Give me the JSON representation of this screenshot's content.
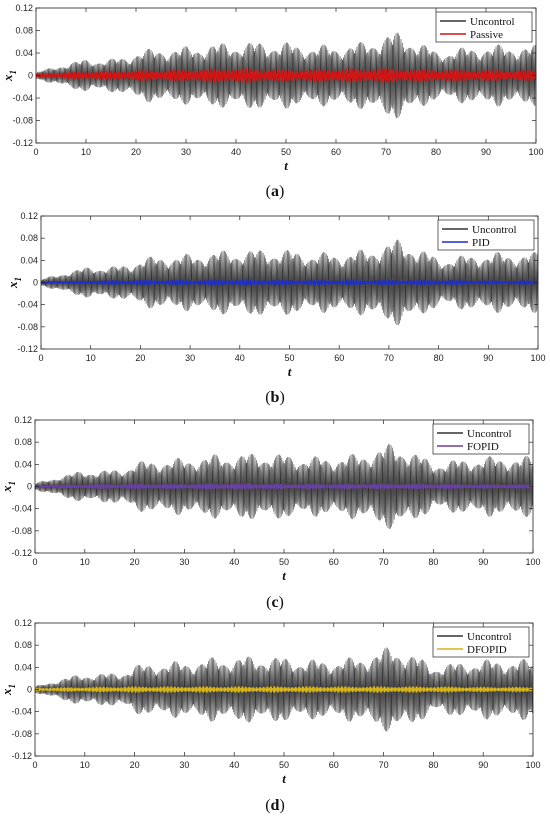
{
  "chart_data": [
    {
      "type": "line",
      "caption": "(a)",
      "xlabel": "t",
      "ylabel": "x",
      "ylabel_sub": "1",
      "xlim": [
        0,
        100
      ],
      "ylim": [
        -0.12,
        0.12
      ],
      "x_ticks": [
        "0",
        "10",
        "20",
        "30",
        "40",
        "50",
        "60",
        "70",
        "80",
        "90",
        "100"
      ],
      "y_ticks": [
        "0.12",
        "0.08",
        "0.04",
        "0",
        "-0.04",
        "-0.08",
        "-0.12"
      ],
      "legend_position": "top-right",
      "series": [
        {
          "name": "Uncontrol",
          "color": "#333333",
          "envelope_x": [
            0,
            5,
            10,
            15,
            18,
            20,
            25,
            30,
            35,
            40,
            45,
            50,
            55,
            60,
            65,
            70,
            72,
            75,
            80,
            85,
            90,
            95,
            100
          ],
          "envelope_amp": [
            0.006,
            0.02,
            0.03,
            0.03,
            0.035,
            0.045,
            0.05,
            0.052,
            0.058,
            0.06,
            0.062,
            0.06,
            0.055,
            0.055,
            0.06,
            0.075,
            0.08,
            0.07,
            0.045,
            0.05,
            0.055,
            0.055,
            0.055
          ]
        },
        {
          "name": "Passive",
          "color": "#d11515",
          "envelope_x": [
            0,
            10,
            20,
            30,
            40,
            50,
            60,
            70,
            80,
            90,
            100
          ],
          "envelope_amp": [
            0.004,
            0.008,
            0.01,
            0.012,
            0.014,
            0.012,
            0.013,
            0.014,
            0.012,
            0.011,
            0.01
          ]
        }
      ]
    },
    {
      "type": "line",
      "caption": "(b)",
      "xlabel": "t",
      "ylabel": "x",
      "ylabel_sub": "1",
      "xlim": [
        0,
        100
      ],
      "ylim": [
        -0.12,
        0.12
      ],
      "x_ticks": [
        "0",
        "10",
        "20",
        "30",
        "40",
        "50",
        "60",
        "70",
        "80",
        "90",
        "100"
      ],
      "y_ticks": [
        "0.12",
        "0.08",
        "0.04",
        "0",
        "-0.04",
        "-0.08",
        "-0.12"
      ],
      "legend_position": "top-right",
      "series": [
        {
          "name": "Uncontrol",
          "color": "#333333",
          "envelope_x": [
            0,
            5,
            10,
            15,
            18,
            20,
            25,
            30,
            35,
            40,
            45,
            50,
            55,
            60,
            65,
            70,
            72,
            75,
            80,
            85,
            90,
            95,
            100
          ],
          "envelope_amp": [
            0.006,
            0.02,
            0.03,
            0.03,
            0.035,
            0.045,
            0.05,
            0.052,
            0.058,
            0.06,
            0.062,
            0.06,
            0.055,
            0.055,
            0.06,
            0.075,
            0.08,
            0.07,
            0.045,
            0.05,
            0.055,
            0.055,
            0.055
          ]
        },
        {
          "name": "PID",
          "color": "#1f2fc8",
          "envelope_x": [
            0,
            10,
            20,
            30,
            40,
            50,
            60,
            70,
            80,
            90,
            100
          ],
          "envelope_amp": [
            0.002,
            0.004,
            0.005,
            0.005,
            0.006,
            0.005,
            0.005,
            0.005,
            0.005,
            0.004,
            0.004
          ]
        }
      ]
    },
    {
      "type": "line",
      "caption": "(c)",
      "xlabel": "t",
      "ylabel": "x",
      "ylabel_sub": "1",
      "xlim": [
        0,
        100
      ],
      "ylim": [
        -0.12,
        0.12
      ],
      "x_ticks": [
        "0",
        "10",
        "20",
        "30",
        "40",
        "50",
        "60",
        "70",
        "80",
        "90",
        "100"
      ],
      "y_ticks": [
        "0.12",
        "0.08",
        "0.04",
        "0",
        "-0.04",
        "-0.08",
        "-0.12"
      ],
      "legend_position": "top-right",
      "series": [
        {
          "name": "Uncontrol",
          "color": "#333333",
          "envelope_x": [
            0,
            5,
            10,
            15,
            18,
            20,
            25,
            30,
            35,
            40,
            45,
            50,
            55,
            60,
            65,
            70,
            72,
            75,
            80,
            85,
            90,
            95,
            100
          ],
          "envelope_amp": [
            0.006,
            0.02,
            0.03,
            0.03,
            0.035,
            0.045,
            0.05,
            0.052,
            0.058,
            0.06,
            0.062,
            0.06,
            0.055,
            0.055,
            0.06,
            0.075,
            0.08,
            0.07,
            0.045,
            0.05,
            0.055,
            0.055,
            0.055
          ]
        },
        {
          "name": "FOPID",
          "color": "#6a3fa8",
          "envelope_x": [
            0,
            10,
            20,
            30,
            40,
            50,
            60,
            70,
            80,
            90,
            100
          ],
          "envelope_amp": [
            0.002,
            0.004,
            0.005,
            0.005,
            0.006,
            0.005,
            0.005,
            0.005,
            0.005,
            0.004,
            0.004
          ]
        }
      ]
    },
    {
      "type": "line",
      "caption": "(d)",
      "xlabel": "t",
      "ylabel": "x",
      "ylabel_sub": "1",
      "xlim": [
        0,
        100
      ],
      "ylim": [
        -0.12,
        0.12
      ],
      "x_ticks": [
        "0",
        "10",
        "20",
        "30",
        "40",
        "50",
        "60",
        "70",
        "80",
        "90",
        "100"
      ],
      "y_ticks": [
        "0.12",
        "0.08",
        "0.04",
        "0",
        "-0.04",
        "-0.08",
        "-0.12"
      ],
      "legend_position": "top-right",
      "series": [
        {
          "name": "Uncontrol",
          "color": "#333333",
          "envelope_x": [
            0,
            5,
            10,
            15,
            18,
            20,
            25,
            30,
            35,
            40,
            45,
            50,
            55,
            60,
            65,
            70,
            72,
            75,
            80,
            85,
            90,
            95,
            100
          ],
          "envelope_amp": [
            0.006,
            0.02,
            0.03,
            0.03,
            0.035,
            0.045,
            0.05,
            0.052,
            0.058,
            0.06,
            0.062,
            0.06,
            0.055,
            0.055,
            0.06,
            0.075,
            0.08,
            0.07,
            0.045,
            0.05,
            0.055,
            0.055,
            0.055
          ]
        },
        {
          "name": "DFOPID",
          "color": "#d6b417",
          "envelope_x": [
            0,
            10,
            20,
            30,
            40,
            50,
            60,
            70,
            80,
            90,
            100
          ],
          "envelope_amp": [
            0.003,
            0.005,
            0.006,
            0.006,
            0.006,
            0.006,
            0.006,
            0.006,
            0.006,
            0.005,
            0.005
          ]
        }
      ]
    }
  ]
}
